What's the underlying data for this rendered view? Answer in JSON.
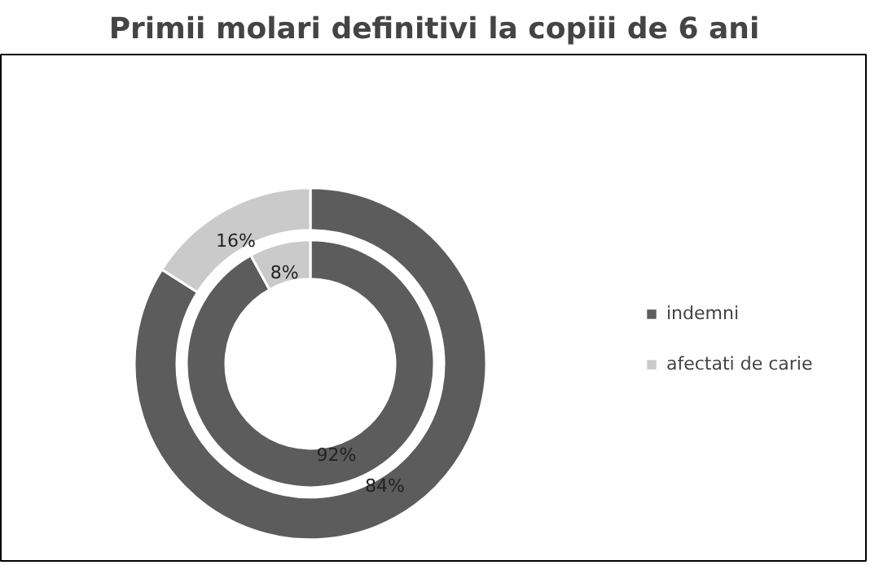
{
  "chart_data": {
    "type": "donut",
    "title": "Primii molari definitivi la copiii de 6 ani",
    "categories": [
      "indemni",
      "afectati de carie"
    ],
    "colors": [
      "#5c5c5c",
      "#cacaca"
    ],
    "series": [
      {
        "values": [
          84,
          16
        ],
        "value_labels": [
          "84%",
          "16%"
        ]
      },
      {
        "values": [
          92,
          8
        ],
        "value_labels": [
          "92%",
          "8%"
        ]
      }
    ],
    "legend": "right"
  }
}
